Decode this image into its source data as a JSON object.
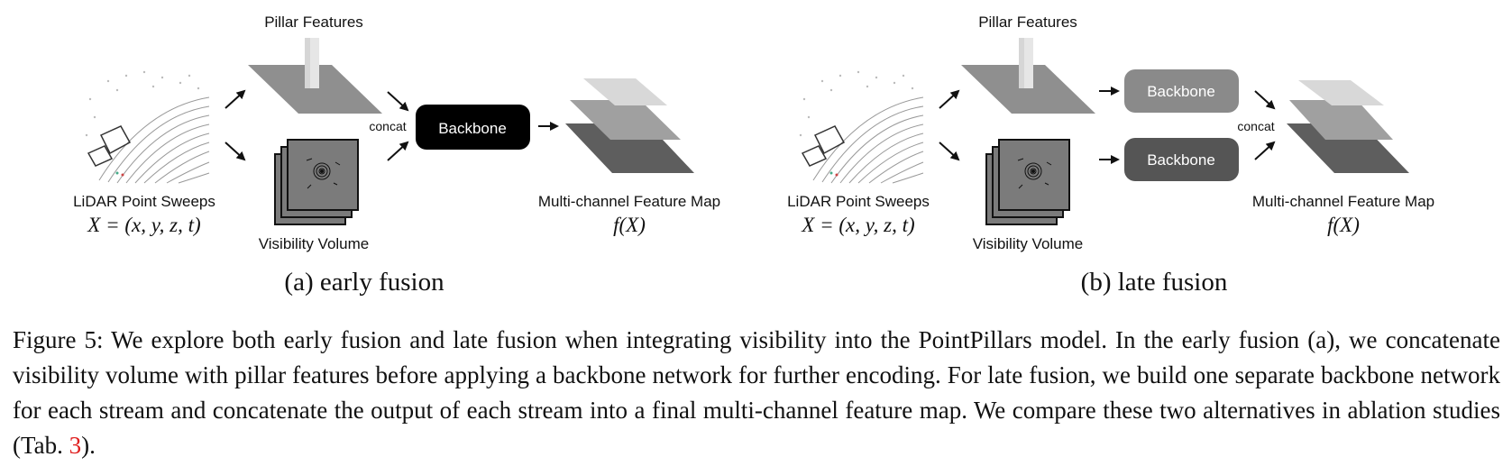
{
  "panels": [
    {
      "id": "a",
      "pillar_label": "Pillar Features",
      "lidar_label": "LiDAR Point Sweeps",
      "lidar_formula": "X = (x, y, z, t)",
      "visibility_label": "Visibility Volume",
      "concat_label": "concat",
      "backbone_label": "Backbone",
      "output_label": "Multi-channel Feature Map",
      "output_formula": "f(X)",
      "subcaption": "(a) early fusion"
    },
    {
      "id": "b",
      "pillar_label": "Pillar Features",
      "lidar_label": "LiDAR Point Sweeps",
      "lidar_formula": "X = (x, y, z, t)",
      "visibility_label": "Visibility Volume",
      "concat_label": "concat",
      "backbone_top_label": "Backbone",
      "backbone_bottom_label": "Backbone",
      "output_label": "Multi-channel Feature Map",
      "output_formula": "f(X)",
      "subcaption": "(b) late fusion"
    }
  ],
  "caption": {
    "text_before": "Figure 5: We explore both early fusion and late fusion when integrating visibility into the PointPillars model. In the early fusion (a), we concatenate visibility volume with pillar features before applying a backbone network for further encoding. For late fusion, we build one separate backbone network for each stream and concatenate the output of each stream into a final multi-channel feature map. We compare these two alternatives in ablation studies (Tab. ",
    "ref": "3",
    "text_after": ")."
  },
  "colors": {
    "backbone_early": "#000000",
    "backbone_late_top": "#8a8a8a",
    "backbone_late_bottom": "#555555",
    "reference_link": "#e02020"
  }
}
